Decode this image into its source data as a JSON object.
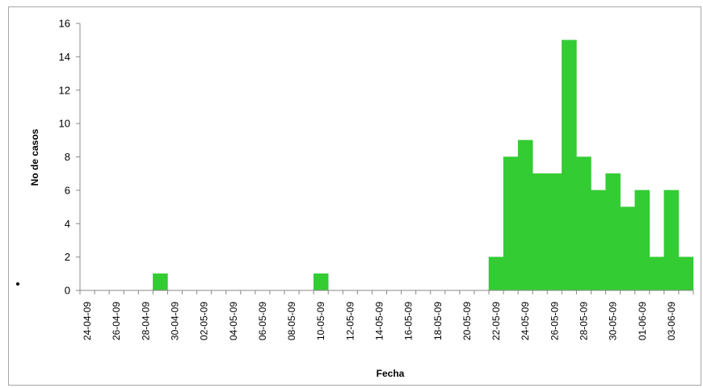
{
  "chart_data": {
    "type": "bar",
    "xlabel": "Fecha",
    "ylabel": "No de casos",
    "ylim": [
      0,
      16
    ],
    "yticks": [
      0,
      2,
      4,
      6,
      8,
      10,
      12,
      14,
      16
    ],
    "grid": false,
    "bar_color": "#33cc33",
    "categories": [
      "24-04-09",
      "25-04-09",
      "26-04-09",
      "27-04-09",
      "28-04-09",
      "29-04-09",
      "30-04-09",
      "01-05-09",
      "02-05-09",
      "03-05-09",
      "04-05-09",
      "05-05-09",
      "06-05-09",
      "07-05-09",
      "08-05-09",
      "09-05-09",
      "10-05-09",
      "11-05-09",
      "12-05-09",
      "13-05-09",
      "14-05-09",
      "15-05-09",
      "16-05-09",
      "17-05-09",
      "18-05-09",
      "19-05-09",
      "20-05-09",
      "21-05-09",
      "22-05-09",
      "23-05-09",
      "24-05-09",
      "25-05-09",
      "26-05-09",
      "27-05-09",
      "28-05-09",
      "29-05-09",
      "30-05-09",
      "31-05-09",
      "01-06-09",
      "02-06-09",
      "03-06-09",
      "04-06-09"
    ],
    "tick_labels": [
      "24-04-09",
      "26-04-09",
      "28-04-09",
      "30-04-09",
      "02-05-09",
      "04-05-09",
      "06-05-09",
      "08-05-09",
      "10-05-09",
      "12-05-09",
      "14-05-09",
      "16-05-09",
      "18-05-09",
      "20-05-09",
      "22-05-09",
      "24-05-09",
      "26-05-09",
      "28-05-09",
      "30-05-09",
      "01-06-09",
      "03-06-09"
    ],
    "values": [
      0,
      0,
      0,
      0,
      0,
      1,
      0,
      0,
      0,
      0,
      0,
      0,
      0,
      0,
      0,
      0,
      1,
      0,
      0,
      0,
      0,
      0,
      0,
      0,
      0,
      0,
      0,
      0,
      2,
      8,
      9,
      7,
      7,
      15,
      8,
      6,
      7,
      5,
      6,
      2,
      6,
      2
    ]
  }
}
